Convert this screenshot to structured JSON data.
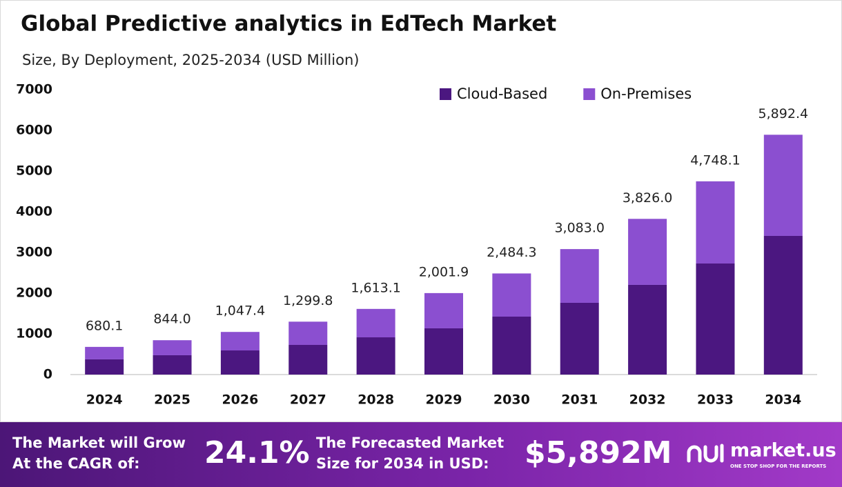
{
  "chart_data": {
    "type": "stacked-bar",
    "title": "Global Predictive analytics in EdTech Market",
    "subtitle": "Size, By Deployment, 2025-2034 (USD Million)",
    "categories": [
      "2024",
      "2025",
      "2026",
      "2027",
      "2028",
      "2029",
      "2030",
      "2031",
      "2032",
      "2033",
      "2034"
    ],
    "series": [
      {
        "name": "Cloud-Based",
        "color": "#4b1780",
        "values": [
          374,
          475,
          593,
          729,
          915,
          1136,
          1424,
          1763,
          2204,
          2729,
          3407
        ]
      },
      {
        "name": "On-Premises",
        "color": "#8b4fd0",
        "values": [
          306.1,
          369,
          454.4,
          570.8,
          698.1,
          865.9,
          1060.3,
          1320,
          1622,
          2019.1,
          2485.4
        ]
      }
    ],
    "totals": [
      680.1,
      844.0,
      1047.4,
      1299.8,
      1613.1,
      2001.9,
      2484.3,
      3083.0,
      3826.0,
      4748.1,
      5892.4
    ],
    "total_labels": [
      "680.1",
      "844.0",
      "1,047.4",
      "1,299.8",
      "1,613.1",
      "2,001.9",
      "2,484.3",
      "3,083.0",
      "3,826.0",
      "4,748.1",
      "5,892.4"
    ],
    "ylim": [
      0,
      7000
    ],
    "yticks": [
      0,
      1000,
      2000,
      3000,
      4000,
      5000,
      6000,
      7000
    ],
    "grid": false,
    "legend": "top-right"
  },
  "footer": {
    "cagr_label": [
      "The Market will Grow",
      "At the CAGR of:"
    ],
    "cagr_value": "24.1%",
    "forecast_label": [
      "The Forecasted Market",
      "Size for 2034 in USD:"
    ],
    "forecast_value": "$5,892M",
    "brand": "market.us",
    "tagline": "ONE STOP SHOP FOR THE REPORTS"
  }
}
